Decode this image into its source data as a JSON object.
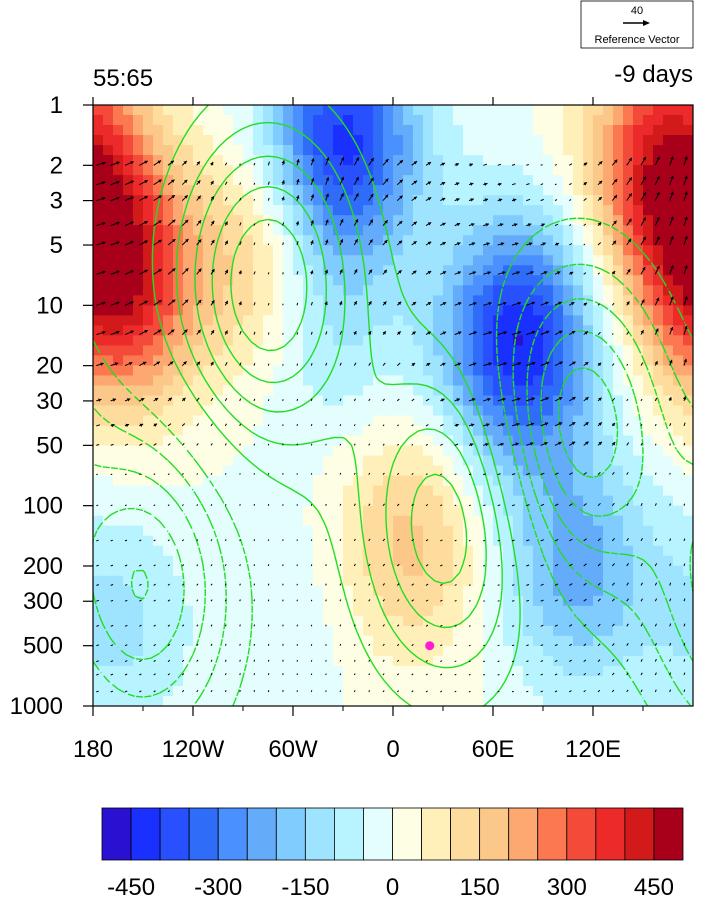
{
  "chart_data": {
    "type": "heatmap",
    "title_left": "55:65",
    "title_right": "-9 days",
    "xlabel": "",
    "ylabel": "",
    "x_ticks": [
      {
        "value": -180,
        "label": "180"
      },
      {
        "value": -120,
        "label": "120W"
      },
      {
        "value": -60,
        "label": "60W"
      },
      {
        "value": 0,
        "label": "0"
      },
      {
        "value": 60,
        "label": "60E"
      },
      {
        "value": 120,
        "label": "120E"
      }
    ],
    "xlim": [
      -180,
      180
    ],
    "y_scale": "log",
    "y_reversed": true,
    "ylim": [
      1000,
      1
    ],
    "y_ticks": [
      {
        "value": 1,
        "label": "1"
      },
      {
        "value": 2,
        "label": "2"
      },
      {
        "value": 3,
        "label": "3"
      },
      {
        "value": 5,
        "label": "5"
      },
      {
        "value": 10,
        "label": "10"
      },
      {
        "value": 20,
        "label": "20"
      },
      {
        "value": 30,
        "label": "30"
      },
      {
        "value": 50,
        "label": "50"
      },
      {
        "value": 100,
        "label": "100"
      },
      {
        "value": 200,
        "label": "200"
      },
      {
        "value": 300,
        "label": "300"
      },
      {
        "value": 500,
        "label": "500"
      },
      {
        "value": 1000,
        "label": "1000"
      }
    ],
    "colorbar": {
      "colors": [
        "#2a10d0",
        "#1a30ff",
        "#2850ff",
        "#2f6cf8",
        "#4a90ff",
        "#64acfa",
        "#80ccff",
        "#9ee4ff",
        "#b8f4ff",
        "#e4fefe",
        "#fefee4",
        "#fef0b8",
        "#fedc9e",
        "#fcc88a",
        "#fca870",
        "#fc7850",
        "#f44a3a",
        "#ec2a2a",
        "#d21a1a",
        "#a8001a"
      ],
      "tick_labels": [
        "-450",
        "-300",
        "-150",
        "0",
        "150",
        "300",
        "450"
      ],
      "tick_values": [
        -450,
        -300,
        -150,
        0,
        150,
        300,
        450
      ],
      "step": 50,
      "min": -500,
      "max": 500
    },
    "reference_vector": {
      "value": "40",
      "label": "Reference Vector"
    },
    "marker": {
      "lon": 22,
      "pressure": 500,
      "color": "#ff1ad6"
    },
    "field_centers": [
      {
        "lon": -165,
        "p": 8,
        "value": 420
      },
      {
        "lon": 165,
        "p": 2,
        "value": 420
      },
      {
        "lon": -30,
        "p": 1.5,
        "value": -420
      },
      {
        "lon": 75,
        "p": 15,
        "value": -450
      },
      {
        "lon": 110,
        "p": 200,
        "value": -220
      },
      {
        "lon": 10,
        "p": 150,
        "value": 170
      },
      {
        "lon": -80,
        "p": 6,
        "value": 160
      },
      {
        "lon": -40,
        "p": 12,
        "value": -120
      },
      {
        "lon": -165,
        "p": 400,
        "value": -110
      },
      {
        "lon": -60,
        "p": 350,
        "value": -40
      }
    ],
    "contour_color": "#22dd22",
    "positive_contour_centers": [
      {
        "lon": -75,
        "p": 8,
        "value": 6
      },
      {
        "lon": 35,
        "p": 120,
        "value": 5
      }
    ],
    "negative_contour_centers": [
      {
        "lon": 110,
        "p": 40,
        "value": -6
      },
      {
        "lon": -150,
        "p": 250,
        "value": -5
      }
    ]
  }
}
